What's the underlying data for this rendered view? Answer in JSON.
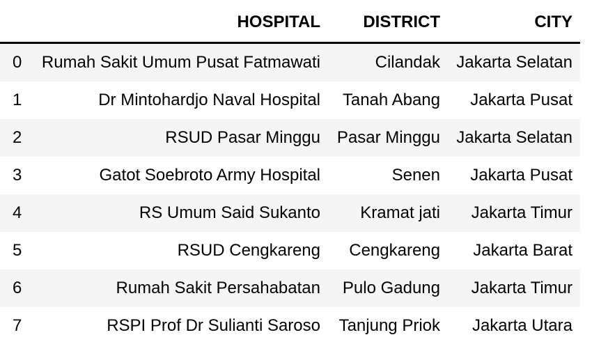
{
  "chart_data": {
    "type": "table",
    "columns": [
      "",
      "HOSPITAL",
      "DISTRICT",
      "CITY"
    ],
    "rows": [
      [
        "0",
        "Rumah Sakit Umum Pusat Fatmawati",
        "Cilandak",
        "Jakarta Selatan"
      ],
      [
        "1",
        "Dr Mintohardjo Naval Hospital",
        "Tanah Abang",
        "Jakarta Pusat"
      ],
      [
        "2",
        "RSUD Pasar Minggu",
        "Pasar Minggu",
        "Jakarta Selatan"
      ],
      [
        "3",
        "Gatot Soebroto Army Hospital",
        "Senen",
        "Jakarta Pusat"
      ],
      [
        "4",
        "RS Umum Said Sukanto",
        "Kramat jati",
        "Jakarta Timur"
      ],
      [
        "5",
        "RSUD Cengkareng",
        "Cengkareng",
        "Jakarta Barat"
      ],
      [
        "6",
        "Rumah Sakit Persahabatan",
        "Pulo Gadung",
        "Jakarta Timur"
      ],
      [
        "7",
        "RSPI Prof Dr Sulianti Saroso",
        "Tanjung Priok",
        "Jakarta Utara"
      ]
    ],
    "title": "",
    "layout": {
      "header_alignment": "right",
      "cell_alignment": "right",
      "index_alignment": "left",
      "striped_rows": "even-index (0,2,4,6)",
      "grid": "off",
      "header_rule": "bottom-border"
    },
    "colors": {
      "text": "#000000",
      "row_stripe": "#f5f5f5",
      "row_plain": "#ffffff",
      "header_border": "#000000",
      "background": "#ffffff"
    }
  }
}
